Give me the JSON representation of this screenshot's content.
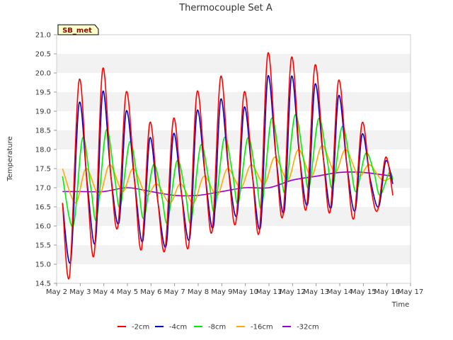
{
  "chart_data": {
    "type": "line",
    "title": "Thermocouple Set A",
    "xlabel": "Time",
    "ylabel": "Temperature",
    "station_badge": "SB_met",
    "ylim": [
      14.5,
      21.0
    ],
    "xlim": [
      2,
      17
    ],
    "yticks": [
      "14.5",
      "15.0",
      "15.5",
      "16.0",
      "16.5",
      "17.0",
      "17.5",
      "18.0",
      "18.5",
      "19.0",
      "19.5",
      "20.0",
      "20.5",
      "21.0"
    ],
    "xticks": [
      "May 2",
      "May 3",
      "May 4",
      "May 5",
      "May 6",
      "May 7",
      "May 8",
      "May 9",
      "May 10",
      "May 11",
      "May 12",
      "May 13",
      "May 14",
      "May 15",
      "May 16",
      "May 17"
    ],
    "grid": "horizontal bands",
    "legend_position": "bottom",
    "series_colors": [
      "#ff0000",
      "#0000cc",
      "#00ee00",
      "#ffaa00",
      "#9900cc"
    ],
    "series": [
      {
        "name": "-2cm",
        "x": [
          2.25,
          2.55,
          2.95,
          3.3,
          3.6,
          3.95,
          4.3,
          4.6,
          4.95,
          5.3,
          5.6,
          5.95,
          6.3,
          6.6,
          6.95,
          7.3,
          7.6,
          7.95,
          8.3,
          8.6,
          8.95,
          9.3,
          9.6,
          9.95,
          10.3,
          10.6,
          10.95,
          11.3,
          11.6,
          11.95,
          12.3,
          12.6,
          12.95,
          13.3,
          13.6,
          13.95,
          14.3,
          14.6,
          14.95,
          15.3,
          15.6,
          15.95,
          16.25
        ],
        "values": [
          16.6,
          14.7,
          19.8,
          17.0,
          15.3,
          20.1,
          17.3,
          16.0,
          19.5,
          17.2,
          15.4,
          18.7,
          16.6,
          15.4,
          18.8,
          16.8,
          15.5,
          19.5,
          17.3,
          15.9,
          19.9,
          17.4,
          16.1,
          19.5,
          17.3,
          15.9,
          20.5,
          17.8,
          16.3,
          20.4,
          17.8,
          16.5,
          20.2,
          17.8,
          16.4,
          19.8,
          17.6,
          16.2,
          18.7,
          17.1,
          16.4,
          17.8,
          16.8
        ]
      },
      {
        "name": "-4cm",
        "x": [
          2.25,
          2.6,
          2.95,
          3.3,
          3.65,
          3.95,
          4.3,
          4.65,
          4.95,
          5.3,
          5.65,
          5.95,
          6.3,
          6.65,
          6.95,
          7.3,
          7.65,
          7.95,
          8.3,
          8.65,
          8.95,
          9.3,
          9.65,
          9.95,
          10.3,
          10.65,
          10.95,
          11.3,
          11.65,
          11.95,
          12.3,
          12.65,
          12.95,
          13.3,
          13.65,
          13.95,
          14.3,
          14.65,
          14.95,
          15.3,
          15.65,
          15.95,
          16.25
        ],
        "values": [
          16.6,
          15.1,
          19.2,
          17.1,
          15.6,
          19.5,
          17.3,
          16.1,
          19.0,
          17.2,
          15.6,
          18.3,
          16.6,
          15.5,
          18.4,
          16.8,
          15.7,
          19.0,
          17.3,
          16.0,
          19.3,
          17.4,
          16.3,
          19.1,
          17.3,
          16.0,
          19.9,
          17.8,
          16.4,
          19.9,
          17.8,
          16.6,
          19.7,
          17.8,
          16.5,
          19.4,
          17.6,
          16.4,
          18.4,
          17.2,
          16.5,
          17.7,
          17.1
        ]
      },
      {
        "name": "-8cm",
        "x": [
          2.25,
          2.7,
          3.1,
          3.45,
          3.7,
          4.1,
          4.45,
          4.7,
          5.1,
          5.45,
          5.7,
          6.1,
          6.45,
          6.7,
          7.1,
          7.45,
          7.7,
          8.1,
          8.45,
          8.7,
          9.1,
          9.45,
          9.7,
          10.1,
          10.45,
          10.7,
          11.1,
          11.45,
          11.7,
          12.1,
          12.45,
          12.7,
          13.1,
          13.45,
          13.7,
          14.1,
          14.45,
          14.7,
          15.1,
          15.45,
          15.7,
          16.1,
          16.25
        ],
        "values": [
          17.3,
          16.0,
          18.3,
          17.0,
          16.2,
          18.5,
          17.3,
          16.5,
          18.2,
          17.1,
          16.2,
          17.6,
          16.8,
          16.1,
          17.7,
          16.9,
          16.1,
          18.1,
          17.2,
          16.4,
          18.3,
          17.4,
          16.6,
          18.3,
          17.3,
          16.5,
          18.8,
          17.7,
          16.9,
          18.9,
          17.8,
          17.0,
          18.8,
          17.8,
          17.0,
          18.6,
          17.6,
          16.9,
          17.9,
          17.4,
          16.8,
          17.4,
          17.2
        ]
      },
      {
        "name": "-16cm",
        "x": [
          2.25,
          2.8,
          3.25,
          3.8,
          4.25,
          4.8,
          5.25,
          5.8,
          6.25,
          6.8,
          7.25,
          7.8,
          8.25,
          8.8,
          9.25,
          9.8,
          10.25,
          10.8,
          11.25,
          11.8,
          12.25,
          12.8,
          13.25,
          13.8,
          14.25,
          14.8,
          15.25,
          15.8,
          16.25
        ],
        "values": [
          17.5,
          16.6,
          17.5,
          16.8,
          17.6,
          16.9,
          17.5,
          16.8,
          17.1,
          16.6,
          17.1,
          16.6,
          17.3,
          16.8,
          17.5,
          17.0,
          17.6,
          17.1,
          17.8,
          17.2,
          18.0,
          17.3,
          18.1,
          17.4,
          18.0,
          17.3,
          17.6,
          17.2,
          17.3
        ]
      },
      {
        "name": "-32cm",
        "x": [
          2.25,
          3.0,
          4.0,
          5.0,
          6.0,
          7.0,
          8.0,
          9.0,
          10.0,
          11.0,
          12.0,
          13.0,
          14.0,
          15.0,
          16.25
        ],
        "values": [
          16.9,
          16.9,
          16.9,
          17.0,
          16.9,
          16.8,
          16.8,
          16.9,
          17.0,
          17.0,
          17.2,
          17.3,
          17.4,
          17.4,
          17.3
        ]
      }
    ]
  }
}
